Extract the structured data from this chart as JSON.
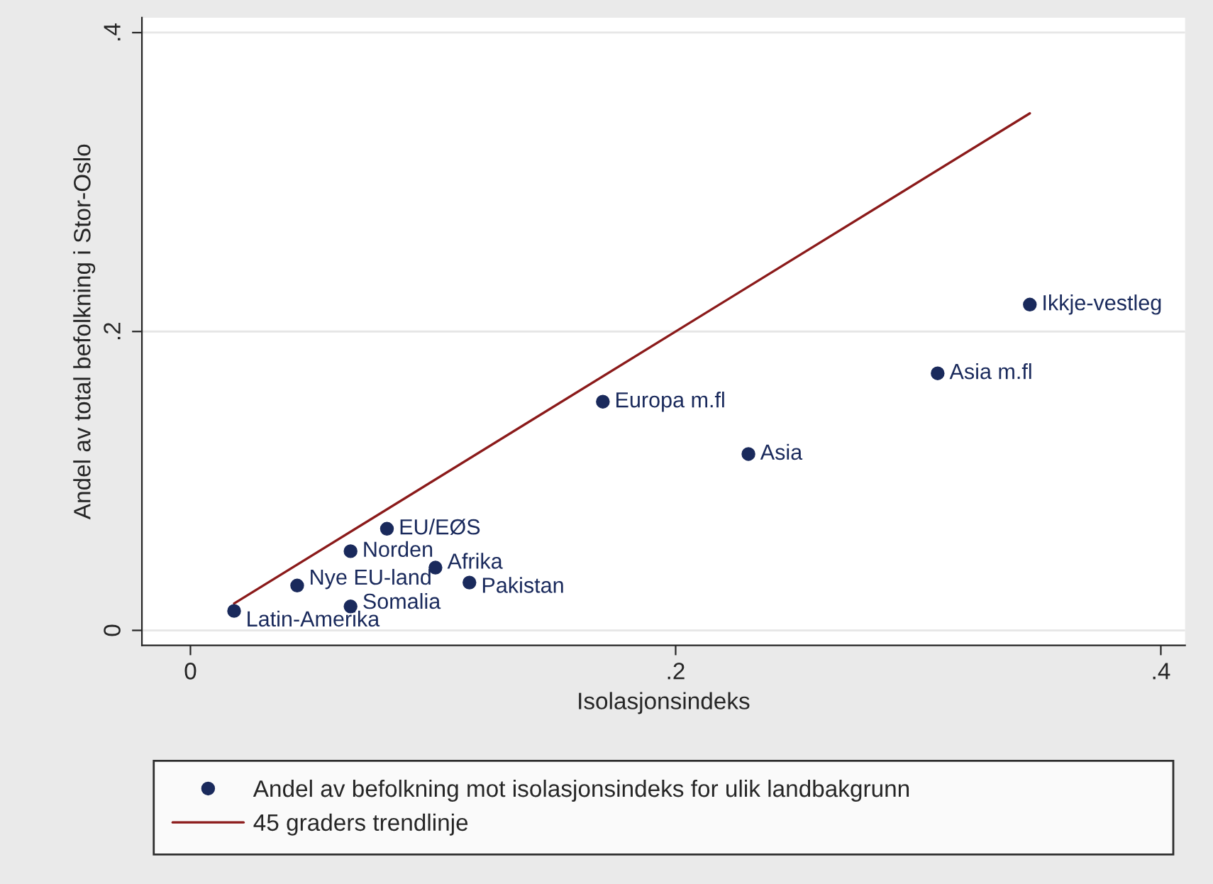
{
  "chart_data": {
    "type": "scatter",
    "xlabel": "Isolasjonsindeks",
    "ylabel": "Andel av total befolkning i Stor-Oslo",
    "xlim": [
      -0.02,
      0.41
    ],
    "ylim": [
      -0.01,
      0.41
    ],
    "xticks": [
      {
        "value": 0,
        "label": "0"
      },
      {
        "value": 0.2,
        "label": ".2"
      },
      {
        "value": 0.4,
        "label": ".4"
      }
    ],
    "yticks": [
      {
        "value": 0,
        "label": "0"
      },
      {
        "value": 0.2,
        "label": ".2"
      },
      {
        "value": 0.4,
        "label": ".4"
      }
    ],
    "grid": "y",
    "legend": "bottom",
    "marker": "circle",
    "series": [
      {
        "name": "Andel av befolkning mot isolasjonsindeks for ulik landbakgrunn",
        "color": "#1a2a5c",
        "x": [
          0.018,
          0.044,
          0.066,
          0.066,
          0.081,
          0.101,
          0.115,
          0.17,
          0.23,
          0.308,
          0.346
        ],
        "values": [
          0.013,
          0.03,
          0.016,
          0.053,
          0.068,
          0.042,
          0.032,
          0.153,
          0.118,
          0.172,
          0.218
        ]
      },
      {
        "name": "45 graders trendlinje",
        "type": "line",
        "marker": "none",
        "color": "#8b1a1a",
        "x": [
          0.018,
          0.346
        ],
        "values": [
          0.018,
          0.346
        ]
      }
    ],
    "annotations": [
      {
        "text": "Latin-Amerika",
        "x": 0.018,
        "y": 0.013
      },
      {
        "text": "Nye EU-land",
        "x": 0.044,
        "y": 0.03
      },
      {
        "text": "Somalia",
        "x": 0.066,
        "y": 0.016
      },
      {
        "text": "Norden",
        "x": 0.066,
        "y": 0.053
      },
      {
        "text": "EU/EØS",
        "x": 0.081,
        "y": 0.068
      },
      {
        "text": "Afrika",
        "x": 0.101,
        "y": 0.042
      },
      {
        "text": "Pakistan",
        "x": 0.115,
        "y": 0.032
      },
      {
        "text": "Europa m.fl",
        "x": 0.17,
        "y": 0.153
      },
      {
        "text": "Asia",
        "x": 0.23,
        "y": 0.118
      },
      {
        "text": "Asia m.fl",
        "x": 0.308,
        "y": 0.172
      },
      {
        "text": "Ikkje-vestleg",
        "x": 0.346,
        "y": 0.218
      }
    ]
  }
}
